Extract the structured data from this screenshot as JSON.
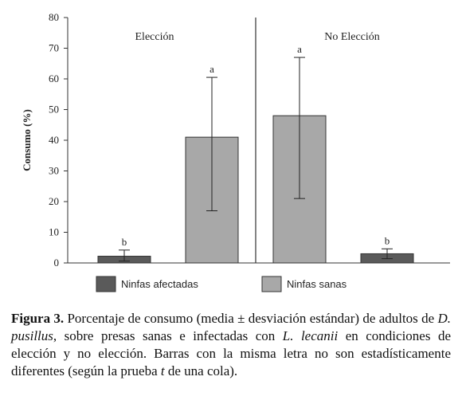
{
  "chart_data": {
    "type": "bar",
    "groups": [
      "Elección",
      "No Elección"
    ],
    "series": [
      {
        "name": "Ninfas afectadas",
        "color": "#5a5a5a",
        "values": [
          2.2,
          3.0
        ],
        "err_low": [
          0.6,
          1.4
        ],
        "err_high": [
          4.2,
          4.6
        ],
        "letters": [
          "b",
          "b"
        ]
      },
      {
        "name": "Ninfas sanas",
        "color": "#a8a8a8",
        "values": [
          41,
          48
        ],
        "err_low": [
          17,
          21
        ],
        "err_high": [
          60.5,
          67
        ],
        "letters": [
          "a",
          "a"
        ]
      }
    ],
    "order": [
      [
        "Ninfas afectadas",
        "Ninfas sanas"
      ],
      [
        "Ninfas sanas",
        "Ninfas afectadas"
      ]
    ],
    "ylabel": "Consumo (%)",
    "ylim": [
      0,
      80
    ],
    "yticks": [
      0,
      10,
      20,
      30,
      40,
      50,
      60,
      70,
      80
    ],
    "grid": false,
    "legend_position": "bottom"
  },
  "caption": {
    "label": "Figura 3.",
    "p1": " Porcentaje de consumo (media ± desviación estándar) de adultos de ",
    "sp1": "D. pusillus",
    "p2": ", sobre presas sanas e infectadas con ",
    "sp2": "L. lecanii",
    "p3": " en condiciones de elección y no elección. Barras con la misma letra no son estadísticamente diferentes (según la prueba ",
    "t": "t",
    "p4": " de una cola)."
  }
}
